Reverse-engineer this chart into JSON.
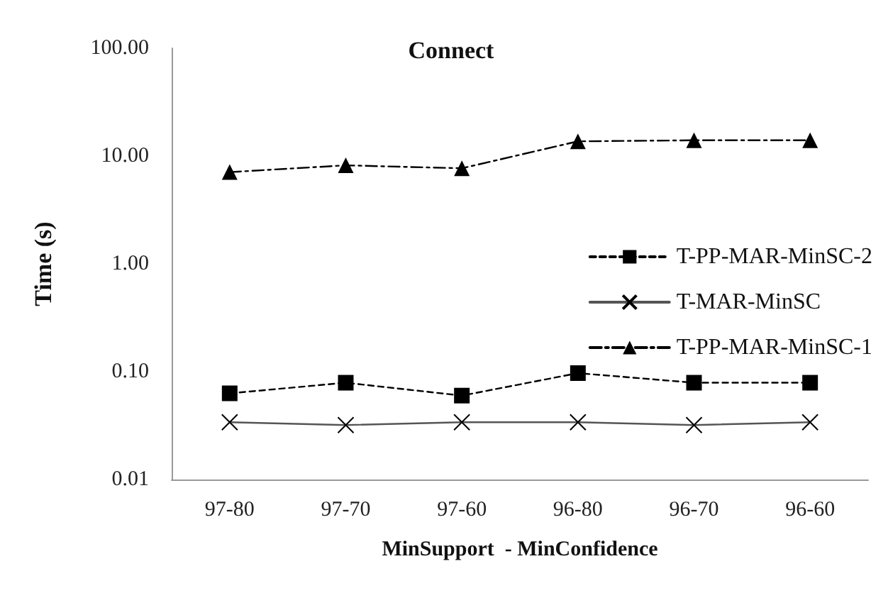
{
  "chart_data": {
    "type": "line",
    "title": "Connect",
    "xlabel": "MinSupport  - MinConfidence",
    "ylabel": "Time (s)",
    "categories": [
      "97-80",
      "97-70",
      "97-60",
      "96-80",
      "96-70",
      "96-60"
    ],
    "series": [
      {
        "name": "T-PP-MAR-MinSC-2",
        "color": "#000000",
        "marker": "square",
        "line_style": "dashed",
        "values": [
          0.063,
          0.079,
          0.06,
          0.097,
          0.079,
          0.079
        ]
      },
      {
        "name": "T-MAR-MinSC",
        "color": "#000000",
        "marker": "cross",
        "line_style": "solid",
        "values": [
          0.034,
          0.032,
          0.034,
          0.034,
          0.032,
          0.034
        ]
      },
      {
        "name": "T-PP-MAR-MinSC-1",
        "color": "#000000",
        "marker": "triangle",
        "line_style": "dashdot",
        "values": [
          7.1,
          8.2,
          7.7,
          13.7,
          14,
          14
        ]
      }
    ],
    "log": "y",
    "ylim": [
      0.01,
      100
    ],
    "yticks": [
      {
        "value": 0.01,
        "label": "0.01"
      },
      {
        "value": 0.1,
        "label": "0.10"
      },
      {
        "value": 1,
        "label": "1.00"
      },
      {
        "value": 10,
        "label": "10.00"
      },
      {
        "value": 100,
        "label": "100.00"
      }
    ],
    "grid": false,
    "legend": "right"
  }
}
